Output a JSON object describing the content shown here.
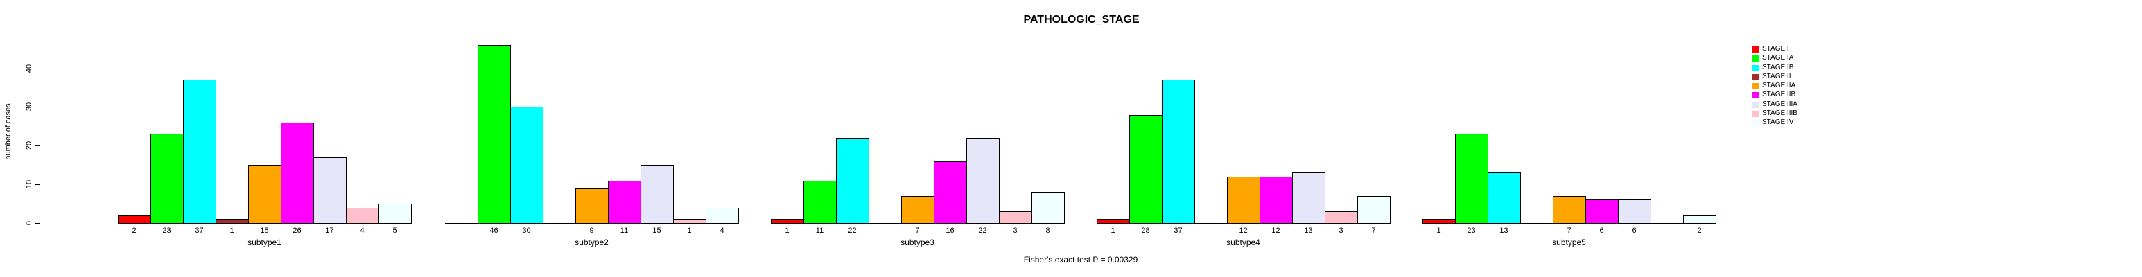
{
  "title": "PATHOLOGIC_STAGE",
  "footer": "Fisher's exact test P = 0.00329",
  "y_axis": {
    "label": "number of cases",
    "ticks": [
      0,
      10,
      20,
      30,
      40
    ]
  },
  "chart_data": {
    "type": "bar",
    "title": "PATHOLOGIC_STAGE",
    "ylabel": "number of cases",
    "xlabel": "",
    "yticks": [
      0,
      10,
      20,
      30,
      40
    ],
    "ylim": [
      0,
      46
    ],
    "grid": false,
    "legend_position": "top-right",
    "annotation": "Fisher's exact test P = 0.00329",
    "value_labels_below_bars": true,
    "hide_zero_bars": true,
    "categories": [
      "subtype1",
      "subtype2",
      "subtype3",
      "subtype4",
      "subtype5"
    ],
    "series": [
      {
        "name": "STAGE I",
        "color": "#FF0000",
        "values": [
          2,
          0,
          1,
          1,
          1
        ]
      },
      {
        "name": "STAGE IA",
        "color": "#00FF00",
        "values": [
          23,
          46,
          11,
          28,
          23
        ]
      },
      {
        "name": "STAGE IB",
        "color": "#00FFFF",
        "values": [
          37,
          30,
          22,
          37,
          13
        ]
      },
      {
        "name": "STAGE II",
        "color": "#A52A2A",
        "values": [
          1,
          0,
          0,
          0,
          0
        ]
      },
      {
        "name": "STAGE IIA",
        "color": "#FFA500",
        "values": [
          15,
          9,
          7,
          12,
          7
        ]
      },
      {
        "name": "STAGE IIB",
        "color": "#FF00FF",
        "values": [
          26,
          11,
          16,
          12,
          6
        ]
      },
      {
        "name": "STAGE IIIA",
        "color": "#E6E6FA",
        "values": [
          17,
          15,
          22,
          13,
          6
        ]
      },
      {
        "name": "STAGE IIIB",
        "color": "#FFC0CB",
        "values": [
          4,
          1,
          3,
          3,
          0
        ]
      },
      {
        "name": "STAGE IV",
        "color": "#F0FFFF",
        "values": [
          5,
          4,
          8,
          7,
          2
        ]
      }
    ]
  }
}
